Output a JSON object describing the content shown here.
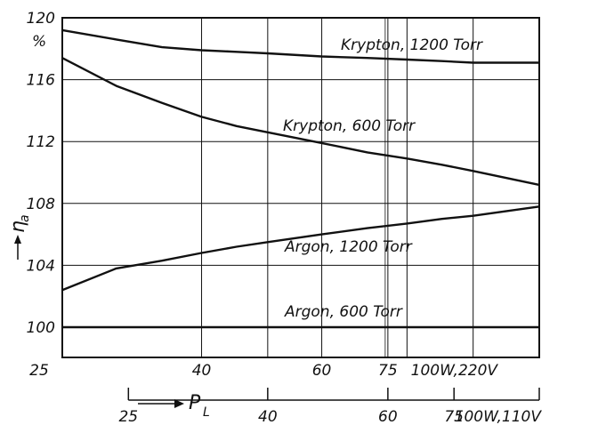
{
  "chart_data": {
    "type": "line",
    "xscale": "log",
    "xlim": [
      25,
      125
    ],
    "ylim": [
      100,
      120
    ],
    "grid": true,
    "y_label": {
      "symbol": "η",
      "subscript": "a"
    },
    "y_unit": "%",
    "x_label": {
      "symbol": "P",
      "subscript": "L"
    },
    "y_ticks": [
      {
        "value": 100,
        "label": "100"
      },
      {
        "value": 104,
        "label": "104"
      },
      {
        "value": 108,
        "label": "108"
      },
      {
        "value": 112,
        "label": "112"
      },
      {
        "value": 116,
        "label": "116"
      },
      {
        "value": 120,
        "label": "120"
      }
    ],
    "x_axis_220V": {
      "ticks": [
        {
          "value": 25,
          "label": "25"
        },
        {
          "value": 40,
          "label": "40"
        },
        {
          "value": 60,
          "label": "60"
        },
        {
          "value": 75,
          "label": "75"
        },
        {
          "value": 100,
          "label": "100W,220V"
        }
      ],
      "extra_gridlines": [
        50,
        80,
        125
      ]
    },
    "x_axis_110V": {
      "scale_factor": 1.25,
      "ticks": [
        {
          "value": 25,
          "label": "25"
        },
        {
          "value": 40,
          "label": "40"
        },
        {
          "value": 60,
          "label": "60"
        },
        {
          "value": 75,
          "label": "75"
        },
        {
          "value": 100,
          "label": "100W,110V"
        }
      ]
    },
    "series": [
      {
        "name": "Krypton, 1200 Torr",
        "x": [
          25,
          30,
          35,
          40,
          45,
          50,
          60,
          70,
          80,
          90,
          100,
          125
        ],
        "y": [
          119.2,
          118.6,
          118.1,
          117.9,
          117.8,
          117.7,
          117.5,
          117.4,
          117.3,
          117.2,
          117.1,
          117.1
        ]
      },
      {
        "name": "Krypton, 600 Torr",
        "x": [
          25,
          30,
          35,
          40,
          45,
          50,
          60,
          70,
          80,
          90,
          100,
          125
        ],
        "y": [
          117.4,
          115.6,
          114.5,
          113.6,
          113.0,
          112.6,
          111.9,
          111.3,
          110.9,
          110.5,
          110.1,
          109.2
        ]
      },
      {
        "name": "Argon, 1200 Torr",
        "x": [
          25,
          30,
          35,
          40,
          45,
          50,
          60,
          70,
          80,
          90,
          100,
          125
        ],
        "y": [
          102.4,
          103.8,
          104.3,
          104.8,
          105.2,
          105.5,
          106.0,
          106.4,
          106.7,
          107.0,
          107.2,
          107.8
        ]
      },
      {
        "name": "Argon, 600 Torr",
        "x": [
          25,
          125
        ],
        "y": [
          100.0,
          100.0
        ]
      }
    ]
  }
}
